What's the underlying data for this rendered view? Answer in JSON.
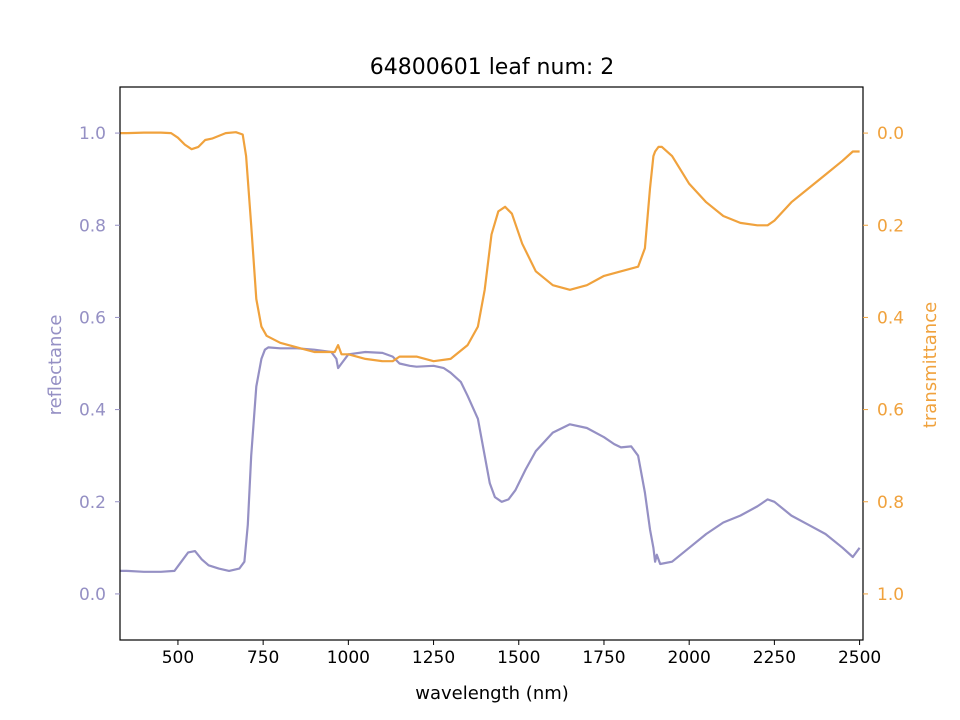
{
  "chart_data": {
    "type": "line",
    "title": "64800601 leaf num: 2",
    "xlabel": "wavelength (nm)",
    "ylabel_left": "reflectance",
    "ylabel_right": "transmittance",
    "xlim": [
      330,
      2510
    ],
    "ylim_left": [
      -0.1,
      1.1
    ],
    "ylim_right": [
      1.1,
      -0.1
    ],
    "right_axis_inverted": true,
    "x_ticks": [
      500,
      750,
      1000,
      1250,
      1500,
      1750,
      2000,
      2250,
      2500
    ],
    "y_ticks_left": [
      0.0,
      0.2,
      0.4,
      0.6,
      0.8,
      1.0
    ],
    "y_ticks_right": [
      0.0,
      0.2,
      0.4,
      0.6,
      0.8,
      1.0
    ],
    "y_tick_labels_left": [
      "0.0",
      "0.2",
      "0.4",
      "0.6",
      "0.8",
      "1.0"
    ],
    "y_tick_labels_right": [
      "0.0",
      "0.2",
      "0.4",
      "0.6",
      "0.8",
      "1.0"
    ],
    "grid": false,
    "colors": {
      "reflectance": "#9590c4",
      "transmittance": "#f0a23d"
    },
    "series": [
      {
        "axis": "left",
        "x": [
          330,
          350,
          400,
          450,
          490,
          510,
          530,
          550,
          570,
          590,
          620,
          650,
          680,
          695,
          705,
          715,
          730,
          745,
          755,
          765,
          800,
          850,
          900,
          950,
          965,
          970,
          980,
          1000,
          1050,
          1100,
          1130,
          1150,
          1180,
          1200,
          1250,
          1280,
          1300,
          1330,
          1350,
          1380,
          1400,
          1415,
          1430,
          1450,
          1470,
          1490,
          1520,
          1550,
          1600,
          1650,
          1700,
          1750,
          1780,
          1800,
          1830,
          1850,
          1870,
          1885,
          1895,
          1900,
          1905,
          1915,
          1950,
          2000,
          2050,
          2100,
          2150,
          2200,
          2230,
          2250,
          2300,
          2350,
          2400,
          2450,
          2480,
          2500
        ],
        "values": [
          0.05,
          0.05,
          0.048,
          0.048,
          0.05,
          0.07,
          0.09,
          0.093,
          0.075,
          0.062,
          0.055,
          0.05,
          0.055,
          0.07,
          0.15,
          0.3,
          0.45,
          0.51,
          0.53,
          0.535,
          0.533,
          0.533,
          0.53,
          0.525,
          0.51,
          0.49,
          0.5,
          0.52,
          0.525,
          0.523,
          0.515,
          0.5,
          0.495,
          0.493,
          0.495,
          0.49,
          0.48,
          0.46,
          0.43,
          0.38,
          0.3,
          0.24,
          0.21,
          0.2,
          0.205,
          0.225,
          0.27,
          0.31,
          0.35,
          0.368,
          0.36,
          0.34,
          0.325,
          0.318,
          0.32,
          0.3,
          0.22,
          0.14,
          0.1,
          0.07,
          0.085,
          0.065,
          0.07,
          0.1,
          0.13,
          0.155,
          0.17,
          0.19,
          0.205,
          0.2,
          0.17,
          0.15,
          0.13,
          0.1,
          0.08,
          0.1
        ]
      },
      {
        "axis": "right",
        "x": [
          330,
          350,
          400,
          450,
          480,
          500,
          520,
          540,
          560,
          580,
          600,
          640,
          670,
          690,
          700,
          715,
          730,
          745,
          760,
          800,
          850,
          900,
          960,
          970,
          980,
          1000,
          1050,
          1100,
          1130,
          1150,
          1200,
          1250,
          1300,
          1350,
          1380,
          1400,
          1420,
          1440,
          1460,
          1480,
          1510,
          1550,
          1600,
          1650,
          1700,
          1750,
          1800,
          1850,
          1870,
          1885,
          1895,
          1900,
          1910,
          1920,
          1950,
          2000,
          2050,
          2100,
          2150,
          2200,
          2230,
          2250,
          2300,
          2350,
          2400,
          2450,
          2480,
          2500
        ],
        "values": [
          0.0,
          0.0,
          -0.001,
          -0.001,
          0.0,
          0.01,
          0.025,
          0.035,
          0.03,
          0.015,
          0.012,
          0.0,
          -0.002,
          0.003,
          0.05,
          0.2,
          0.36,
          0.42,
          0.44,
          0.455,
          0.465,
          0.475,
          0.475,
          0.46,
          0.48,
          0.48,
          0.49,
          0.495,
          0.495,
          0.485,
          0.485,
          0.495,
          0.49,
          0.46,
          0.42,
          0.34,
          0.22,
          0.17,
          0.16,
          0.175,
          0.24,
          0.3,
          0.33,
          0.34,
          0.33,
          0.31,
          0.3,
          0.29,
          0.25,
          0.12,
          0.05,
          0.04,
          0.03,
          0.03,
          0.05,
          0.11,
          0.15,
          0.18,
          0.195,
          0.2,
          0.2,
          0.19,
          0.15,
          0.12,
          0.09,
          0.06,
          0.04,
          0.04
        ]
      }
    ]
  }
}
